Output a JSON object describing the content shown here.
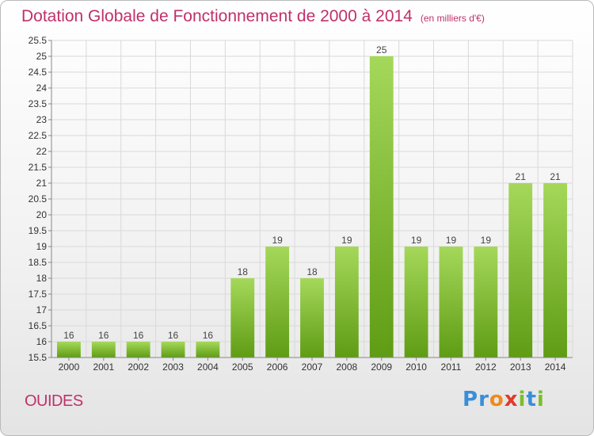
{
  "header": {
    "title": "Dotation Globale de Fonctionnement de 2000 à 2014",
    "unit": "(en milliers d'€)"
  },
  "footer": {
    "commune": "OUIDES",
    "brand_letters": [
      {
        "ch": "P",
        "color": "#3a8ed8"
      },
      {
        "ch": "r",
        "color": "#3a8ed8"
      },
      {
        "ch": "o",
        "color": "#f08a1c"
      },
      {
        "ch": "x",
        "color": "#e23a2a"
      },
      {
        "ch": "i",
        "color": "#7bbf2a"
      },
      {
        "ch": "t",
        "color": "#3a8ed8"
      },
      {
        "ch": "i",
        "color": "#7bbf2a"
      }
    ]
  },
  "colors": {
    "title": "#c0306a",
    "bar_light": "#a5d85a",
    "bar_dark": "#5f9c14",
    "grid": "#d9d9d9"
  },
  "chart_data": {
    "type": "bar",
    "categories": [
      "2000",
      "2001",
      "2002",
      "2003",
      "2004",
      "2005",
      "2006",
      "2007",
      "2008",
      "2009",
      "2010",
      "2011",
      "2012",
      "2013",
      "2014"
    ],
    "values": [
      16,
      16,
      16,
      16,
      16,
      18,
      19,
      18,
      19,
      25,
      19,
      19,
      19,
      21,
      21
    ],
    "ylim": [
      15.5,
      25.5
    ],
    "yticks": [
      "15.5",
      "16",
      "16.5",
      "17",
      "17.5",
      "18",
      "18.5",
      "19",
      "19.5",
      "20",
      "20.5",
      "21",
      "21.5",
      "22",
      "22.5",
      "23",
      "23.5",
      "24",
      "24.5",
      "25",
      "25.5"
    ],
    "grid": true
  }
}
